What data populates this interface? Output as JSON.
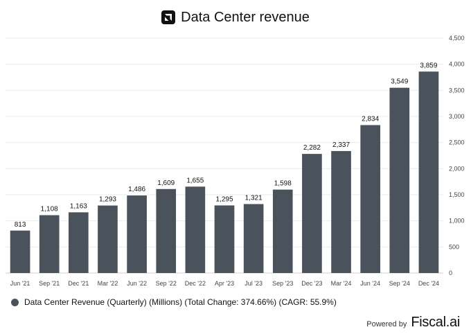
{
  "chart_data": {
    "type": "bar",
    "title": "Data Center revenue",
    "categories": [
      "Jun '21",
      "Sep '21",
      "Dec '21",
      "Mar '22",
      "Jun '22",
      "Sep '22",
      "Dec '22",
      "Apr '23",
      "Jul '23",
      "Sep '23",
      "Dec '23",
      "Mar '24",
      "Jun '24",
      "Sep '24",
      "Dec '24"
    ],
    "values": [
      813,
      1108,
      1163,
      1293,
      1486,
      1609,
      1655,
      1295,
      1321,
      1598,
      2282,
      2337,
      2834,
      3549,
      3859
    ],
    "value_labels": [
      "813",
      "1,108",
      "1,163",
      "1,293",
      "1,486",
      "1,609",
      "1,655",
      "1,295",
      "1,321",
      "1,598",
      "2,282",
      "2,337",
      "2,834",
      "3,549",
      "3,859"
    ],
    "ylim": [
      0,
      4500
    ],
    "yticks": [
      0,
      500,
      1000,
      1500,
      2000,
      2500,
      3000,
      3500,
      4000,
      4500
    ],
    "ytick_labels": [
      "0",
      "500",
      "1,000",
      "1,500",
      "2,000",
      "2,500",
      "3,000",
      "3,500",
      "4,000",
      "4,500"
    ],
    "y_axis_side": "right",
    "grid": true,
    "bar_color": "#4a535b",
    "legend": {
      "label": "Data Center Revenue (Quarterly) (Millions) (Total Change: 374.66%) (CAGR: 55.9%)",
      "placement": "bottom-left"
    }
  },
  "footer": {
    "powered_by": "Powered by",
    "brand": "Fiscal.ai"
  }
}
